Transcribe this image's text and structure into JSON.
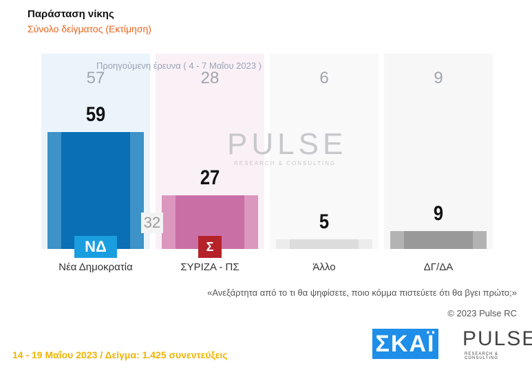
{
  "title": "Παράσταση νίκης",
  "subtitle": "Σύνολο δείγματος   (Εκτίμηση)",
  "chart_data": {
    "type": "bar",
    "categories": [
      "Νέα Δημοκρατία",
      "ΣΥΡΙΖΑ - ΠΣ",
      "Άλλο",
      "ΔΓ/ΔΑ"
    ],
    "series": [
      {
        "name": "",
        "values": [
          59,
          27,
          5,
          9
        ]
      },
      {
        "name": "Προηγούμενη έρευνα  ( 4 - 7 Μαΐου  2023 )",
        "values": [
          57,
          28,
          6,
          9
        ]
      }
    ],
    "colors": [
      "#0a6fb4",
      "#c96fa6",
      "#dcdcdc",
      "#999999"
    ],
    "annotation": "32",
    "ylim": [
      0,
      100
    ]
  },
  "question": "«Ανεξάρτητα από το τι θα ψηφίσετε, ποιο κόμμα πιστεύετε ότι θα βγει πρώτο;»",
  "copyright": "© 2023 Pulse RC",
  "footer": "14 - 19  Μαΐου  2023  /  Δείγμα:  1.425 συνεντεύξεις",
  "logos": {
    "nd": "ΝΔ",
    "syriza": "Σ",
    "skai": "ΣΚΑΪ",
    "pulse": "PULSE",
    "pulse_sub": "RESEARCH & CONSULTING"
  }
}
